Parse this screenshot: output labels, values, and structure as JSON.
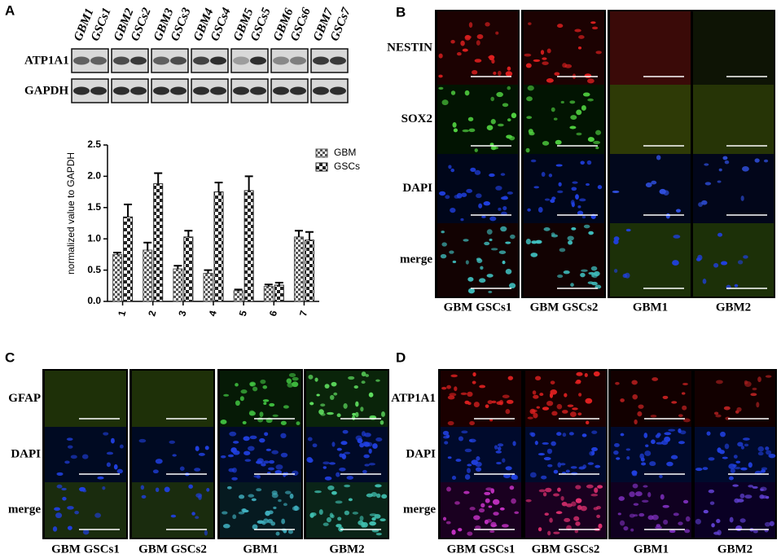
{
  "panels": {
    "a": {
      "label": "A",
      "lanes": [
        "GBM1",
        "GSCs1",
        "GBM2",
        "GSCs2",
        "GBM3",
        "GSCs3",
        "GBM4",
        "GSCs4",
        "GBM5",
        "GSCs5",
        "GBM6",
        "GSCs6",
        "GBM7",
        "GSCs7"
      ],
      "rows": [
        "ATP1A1",
        "GAPDH"
      ]
    },
    "b": {
      "label": "B",
      "rows": [
        "NESTIN",
        "SOX2",
        "DAPI",
        "merge"
      ],
      "columns": [
        "GBM GSCs1",
        "GBM GSCs2",
        "GBM1",
        "GBM2"
      ]
    },
    "c": {
      "label": "C",
      "rows": [
        "GFAP",
        "DAPI",
        "merge"
      ],
      "columns": [
        "GBM GSCs1",
        "GBM GSCs2",
        "GBM1",
        "GBM2"
      ]
    },
    "d": {
      "label": "D",
      "rows": [
        "ATP1A1",
        "DAPI",
        "merge"
      ],
      "columns": [
        "GBM GSCs1",
        "GBM GSCs2",
        "GBM1",
        "GBM2"
      ]
    }
  },
  "chart_data": {
    "type": "bar",
    "y_label": "normalized value to GAPDH",
    "categories": [
      "1",
      "2",
      "3",
      "4",
      "5",
      "6",
      "7"
    ],
    "series": [
      {
        "name": "GBM",
        "color": "#555555",
        "values": [
          0.75,
          0.82,
          0.52,
          0.45,
          0.17,
          0.24,
          1.03
        ],
        "errors": [
          0.03,
          0.12,
          0.05,
          0.05,
          0.02,
          0.03,
          0.1
        ]
      },
      {
        "name": "GSCs",
        "color": "#222222",
        "values": [
          1.35,
          1.88,
          1.03,
          1.75,
          1.77,
          0.26,
          0.98
        ],
        "errors": [
          0.2,
          0.17,
          0.1,
          0.15,
          0.23,
          0.04,
          0.13
        ]
      }
    ],
    "ylim": [
      0,
      2.5
    ],
    "yticks": [
      {
        "value": 0,
        "label": "0.0"
      },
      0.5,
      {
        "value": 1,
        "label": "1.0"
      },
      1.5,
      {
        "value": 2,
        "label": "2.0"
      },
      2.5
    ],
    "legend": "upper right"
  }
}
